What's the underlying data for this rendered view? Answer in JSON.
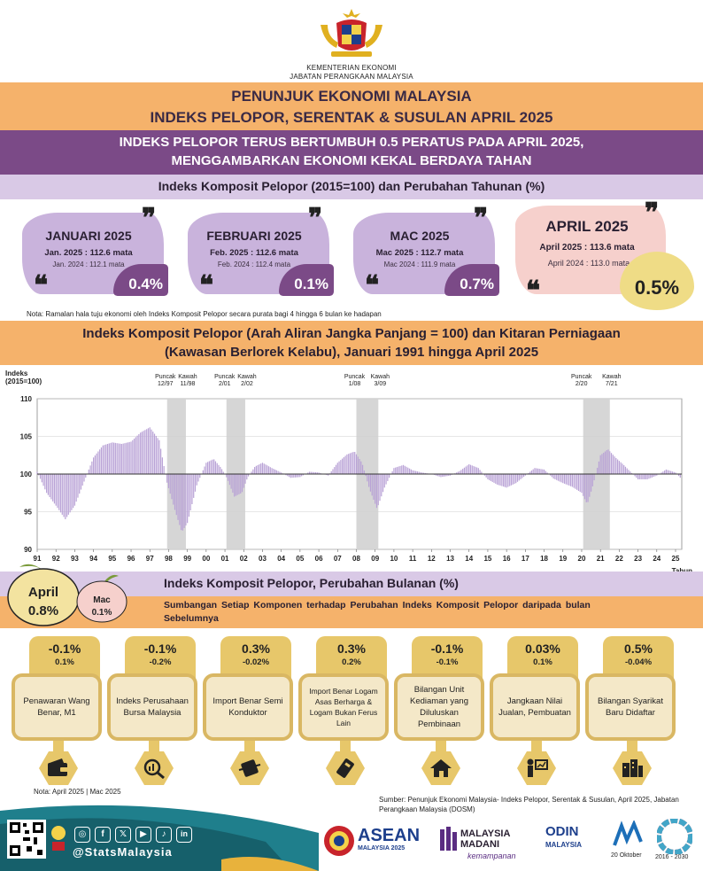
{
  "header": {
    "ministry_line1": "KEMENTERIAN EKONOMI",
    "ministry_line2": "JABATAN PERANGKAAN MALAYSIA",
    "title_line1": "PENUNJUK EKONOMI MALAYSIA",
    "title_line2": "INDEKS PELOPOR, SERENTAK & SUSULAN APRIL 2025",
    "headline_line1": "INDEKS PELOPOR TERUS BERTUMBUH 0.5 PERATUS PADA APRIL 2025,",
    "headline_line2": "MENGGAMBARKAN EKONOMI KEKAL BERDAYA TAHAN",
    "section1": "Indeks Komposit Pelopor (2015=100) dan Perubahan Tahunan (%)"
  },
  "cards": [
    {
      "month": "JANUARI 2025",
      "line1": "Jan. 2025 : 112.6 mata",
      "line2": "Jan. 2024 : 112.1 mata",
      "pct": "0.4%"
    },
    {
      "month": "FEBRUARI 2025",
      "line1": "Feb. 2025 : 112.6 mata",
      "line2": "Feb. 2024 : 112.4 mata",
      "pct": "0.1%"
    },
    {
      "month": "MAC 2025",
      "line1": "Mac 2025 : 112.7 mata",
      "line2": "Mac 2024 : 111.9 mata",
      "pct": "0.7%"
    },
    {
      "month": "APRIL 2025",
      "line1": "April 2025 : 113.6 mata",
      "line2": "April 2024 : 113.0 mata",
      "pct": "0.5%"
    }
  ],
  "note1": "Nota: Ramalan hala tuju ekonomi oleh Indeks Komposit Pelopor secara purata bagi 4 hingga 6 bulan ke hadapan",
  "chart_section": {
    "title_line1": "Indeks Komposit Pelopor (Arah Aliran Jangka Panjang = 100) dan Kitaran Perniagaan",
    "title_line2": "(Kawasan Berlorek Kelabu), Januari 1991 hingga April 2025"
  },
  "chart_data": {
    "type": "bar",
    "ylabel_line1": "Indeks",
    "ylabel_line2": "(2015=100)",
    "xlabel": "Tahun",
    "ylim": [
      90,
      110
    ],
    "yticks": [
      90,
      95,
      100,
      105,
      110
    ],
    "baseline": 100,
    "xlim": [
      1991,
      2025.33
    ],
    "x_ticks": [
      "91",
      "92",
      "93",
      "94",
      "95",
      "96",
      "97",
      "98",
      "99",
      "00",
      "01",
      "02",
      "03",
      "04",
      "05",
      "06",
      "07",
      "08",
      "09",
      "10",
      "11",
      "12",
      "13",
      "14",
      "15",
      "16",
      "17",
      "18",
      "19",
      "20",
      "21",
      "22",
      "23",
      "24",
      "25"
    ],
    "grid": true,
    "shaded_periods": [
      {
        "start": 1997.92,
        "end": 1998.92,
        "peak_label": "Puncak",
        "peak_date": "12/97",
        "trough_label": "Kawah",
        "trough_date": "11/98"
      },
      {
        "start": 2001.08,
        "end": 2002.08,
        "peak_label": "Puncak",
        "peak_date": "2/01",
        "trough_label": "Kawah",
        "trough_date": "2/02"
      },
      {
        "start": 2008.0,
        "end": 2009.17,
        "peak_label": "Puncak",
        "peak_date": "1/08",
        "trough_label": "Kawah",
        "trough_date": "3/09"
      },
      {
        "start": 2020.08,
        "end": 2021.5,
        "peak_label": "Puncak",
        "peak_date": "2/20",
        "trough_label": "Kawah",
        "trough_date": "7/21"
      }
    ],
    "series": [
      {
        "x": [
          1991.0,
          1991.5,
          1992.0,
          1992.5,
          1993.0,
          1993.5,
          1994.0,
          1994.5,
          1995.0,
          1995.5,
          1996.0,
          1996.5,
          1997.0,
          1997.5,
          1997.9,
          1998.3,
          1998.7,
          1999.0,
          1999.5,
          2000.0,
          2000.4,
          2000.8,
          2001.1,
          2001.5,
          2001.9,
          2002.2,
          2002.6,
          2003.0,
          2003.5,
          2004.0,
          2004.5,
          2005.0,
          2005.5,
          2006.0,
          2006.5,
          2007.0,
          2007.5,
          2007.9,
          2008.3,
          2008.7,
          2009.1,
          2009.5,
          2010.0,
          2010.5,
          2011.0,
          2011.5,
          2012.0,
          2012.5,
          2013.0,
          2013.5,
          2014.0,
          2014.5,
          2015.0,
          2015.5,
          2016.0,
          2016.5,
          2017.0,
          2017.5,
          2018.0,
          2018.5,
          2019.0,
          2019.5,
          2020.0,
          2020.3,
          2020.6,
          2021.0,
          2021.4,
          2021.8,
          2022.2,
          2022.6,
          2023.0,
          2023.5,
          2024.0,
          2024.5,
          2025.0,
          2025.33
        ],
        "values": [
          100.3,
          97.5,
          95.8,
          94.0,
          95.8,
          99.0,
          102.2,
          103.8,
          104.2,
          104.0,
          104.3,
          105.5,
          106.2,
          104.5,
          99.0,
          95.5,
          92.3,
          93.5,
          98.5,
          101.5,
          102.0,
          100.8,
          99.5,
          97.0,
          97.5,
          99.5,
          101.0,
          101.5,
          100.8,
          100.2,
          99.5,
          99.6,
          100.3,
          100.2,
          99.8,
          101.5,
          102.6,
          103.0,
          101.5,
          98.0,
          95.4,
          98.2,
          100.8,
          101.2,
          100.5,
          100.2,
          100.0,
          99.6,
          99.8,
          100.4,
          101.3,
          100.8,
          99.3,
          98.6,
          98.2,
          98.8,
          99.8,
          100.8,
          100.6,
          99.4,
          98.8,
          98.3,
          97.5,
          96.0,
          98.5,
          102.5,
          103.3,
          102.2,
          101.3,
          100.3,
          99.3,
          99.3,
          99.8,
          100.6,
          100.2,
          99.3
        ]
      }
    ]
  },
  "monthly": {
    "april_label": "April",
    "april_value": "0.8%",
    "mac_label": "Mac",
    "mac_value": "0.1%",
    "title": "Indeks Komposit Pelopor, Perubahan Bulanan (%)",
    "subtitle_line1": "Sumbangan Setiap Komponen terhadap Perubahan Indeks Komposit Pelopor daripada bulan",
    "subtitle_line2": "Sebelumnya"
  },
  "components": [
    {
      "v1": "-0.1%",
      "v2": "0.1%",
      "name": "Penawaran Wang Benar, M1",
      "icon": "wallet-icon"
    },
    {
      "v1": "-0.1%",
      "v2": "-0.2%",
      "name": "Indeks Perusahaan Bursa Malaysia",
      "icon": "chart-magnifier-icon"
    },
    {
      "v1": "0.3%",
      "v2": "-0.02%",
      "name": "Import Benar Semi Konduktor",
      "icon": "chip-icon"
    },
    {
      "v1": "0.3%",
      "v2": "0.2%",
      "name": "Import Benar Logam Asas Berharga & Logam Bukan Ferus Lain",
      "icon": "metal-bar-icon"
    },
    {
      "v1": "-0.1%",
      "v2": "-0.1%",
      "name": "Bilangan Unit Kediaman yang Diluluskan Pembinaan",
      "icon": "house-icon"
    },
    {
      "v1": "0.03%",
      "v2": "0.1%",
      "name": "Jangkaan Nilai Jualan, Pembuatan",
      "icon": "presenter-icon"
    },
    {
      "v1": "0.5%",
      "v2": "-0.04%",
      "name": "Bilangan Syarikat Baru Didaftar",
      "icon": "buildings-icon"
    }
  ],
  "note2": "Nota: April 2025 | Mac 2025",
  "source": "Sumber: Penunjuk Ekonomi Malaysia- Indeks Pelopor, Serentak & Susulan, April 2025, Jabatan Perangkaan Malaysia (DOSM)",
  "footer": {
    "handle": "@StatsMalaysia",
    "logo1": "ASEAN",
    "logo1_sub": "MALAYSIA 2025",
    "logo2": "MALAYSIA MADANI",
    "logo2_sub": "kemampanan",
    "logo3": "ODIN",
    "logo3_sub": "MALAYSIA",
    "logo4_date": "20 Oktober",
    "logo5_years": "2016 - 2030"
  },
  "colors": {
    "orange": "#f5b26b",
    "purple": "#7b4a87",
    "lavender": "#d9c9e6",
    "gold": "#e7c76a",
    "bar": "#b9a2d6",
    "shade": "#d6d6d6"
  }
}
